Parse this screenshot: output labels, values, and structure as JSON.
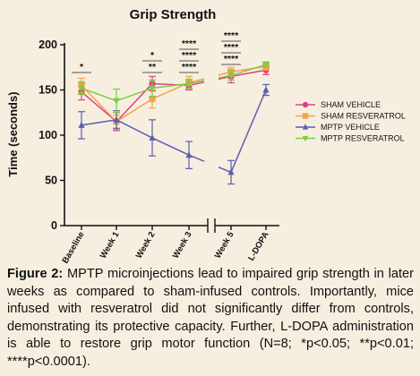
{
  "chart_data": {
    "type": "line",
    "title": "Grip Strength",
    "ylabel": "Time (seconds)",
    "xlabel": "",
    "ylim": [
      0,
      200
    ],
    "yticks": [
      0,
      50,
      100,
      150,
      200
    ],
    "categories": [
      "Baseline",
      "Week 1",
      "Week 2",
      "Week 3",
      "Week 5",
      "L-DOPA"
    ],
    "axis_break_between": [
      "Week 3",
      "Week 5"
    ],
    "grid": false,
    "legend_position": "right",
    "series": [
      {
        "name": "SHAM VEHICLE",
        "color": "#e0408a",
        "marker": "circle",
        "values": [
          148,
          115,
          157,
          155,
          165,
          172
        ],
        "errors": [
          9,
          10,
          8,
          5,
          7,
          5
        ]
      },
      {
        "name": "SHAM RESVERATROL",
        "color": "#f7a34a",
        "marker": "square",
        "values": [
          155,
          115,
          140,
          158,
          170,
          176
        ],
        "errors": [
          8,
          7,
          10,
          7,
          5,
          4
        ]
      },
      {
        "name": "MPTP VEHICLE",
        "color": "#5b5fb0",
        "marker": "triangle",
        "values": [
          111,
          117,
          97,
          78,
          59,
          150
        ],
        "errors": [
          15,
          10,
          20,
          15,
          13,
          6
        ]
      },
      {
        "name": "MPTP RESVERATROL",
        "color": "#7ccc46",
        "marker": "triangle-down",
        "values": [
          152,
          138,
          152,
          157,
          166,
          178
        ],
        "errors": [
          7,
          13,
          9,
          5,
          5,
          3
        ]
      }
    ],
    "significance": [
      {
        "category": "Baseline",
        "labels": [
          "*"
        ]
      },
      {
        "category": "Week 2",
        "labels": [
          "*",
          "**"
        ]
      },
      {
        "category": "Week 3",
        "labels": [
          "****",
          "****",
          "****"
        ]
      },
      {
        "category": "Week 5",
        "labels": [
          "****",
          "****",
          "****"
        ]
      }
    ]
  },
  "caption": {
    "label": "Figure 2:",
    "text": "MPTP microinjections lead to impaired grip strength in later weeks as compared to sham-infused controls. Importantly, mice infused with resveratrol did not significantly differ from controls, demonstrating its protective capacity. Further, L-DOPA administration is able to restore grip motor function (N=8; *p<0.05; **p<0.01; ****p<0.0001)."
  }
}
